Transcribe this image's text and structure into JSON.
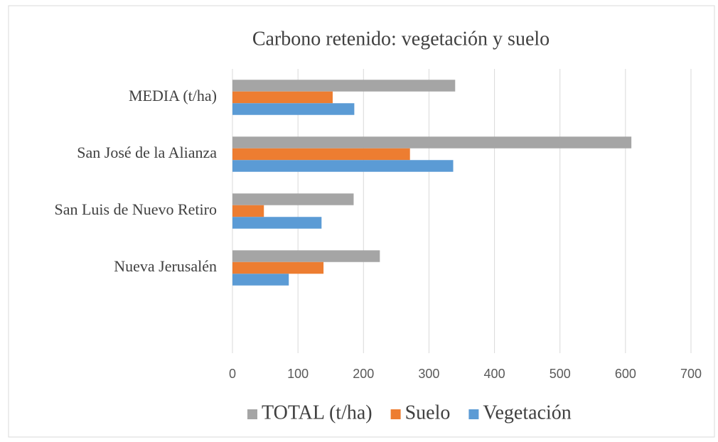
{
  "chart_data": {
    "type": "bar",
    "orientation": "horizontal",
    "title": "Carbono retenido: vegetación y suelo",
    "categories": [
      null,
      "Nueva Jerusalén",
      "San Luis de Nuevo Retiro",
      "San José de la Alianza",
      "MEDIA (t/ha)"
    ],
    "series": [
      {
        "name": "TOTAL (t/ha)",
        "color": "#a5a5a5",
        "values": [
          null,
          225,
          185,
          609,
          340
        ]
      },
      {
        "name": "Suelo",
        "color": "#ed7d31",
        "values": [
          null,
          139,
          48,
          271,
          153
        ]
      },
      {
        "name": "Vegetación",
        "color": "#5b9bd5",
        "values": [
          null,
          86,
          136,
          337,
          186
        ]
      }
    ],
    "xlim": [
      0,
      700
    ],
    "xticks": [
      0,
      100,
      200,
      300,
      400,
      500,
      600,
      700
    ],
    "grid": true,
    "legend": "bottom"
  }
}
